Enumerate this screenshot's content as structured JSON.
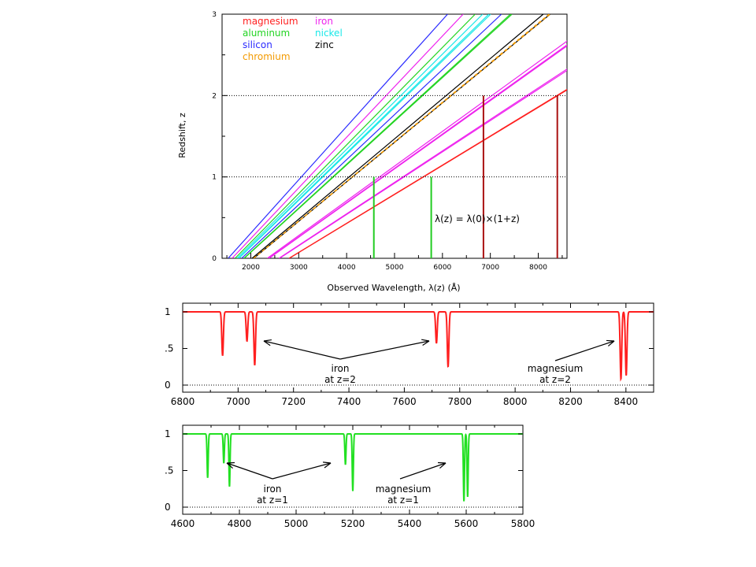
{
  "chart_data": [
    {
      "type": "line",
      "xlabel": "Observed Wavelength, λ(z) (Å)",
      "ylabel": "Redshift, z",
      "xlim": [
        1400,
        8600
      ],
      "ylim": [
        0,
        3
      ],
      "x_ticks": [
        2000,
        3000,
        4000,
        5000,
        6000,
        7000,
        8000
      ],
      "y_ticks": [
        0,
        1,
        2,
        3
      ],
      "ref_lines_y": [
        1,
        2
      ],
      "formula": "λ(z) = λ(0)×(1+z)",
      "grid": false,
      "legend_position": "top-left",
      "legend": [
        {
          "name": "magnesium",
          "color": "#ff1f1f"
        },
        {
          "name": "aluminum",
          "color": "#22d422"
        },
        {
          "name": "silicon",
          "color": "#2b2bff"
        },
        {
          "name": "chromium",
          "color": "#f39a00"
        },
        {
          "name": "iron",
          "color": "#ee22ee"
        },
        {
          "name": "nickel",
          "color": "#18e8e8"
        },
        {
          "name": "zinc",
          "color": "#000000"
        }
      ],
      "series_note": "each line is λ(z) = λ(0)(1+z); values = rest wavelength λ(0) in Å",
      "series": [
        {
          "element": "silicon",
          "color": "#2b2bff",
          "rest": [
            1527,
            1808
          ]
        },
        {
          "element": "aluminum",
          "color": "#22d422",
          "rest": [
            1671,
            1855,
            1863
          ]
        },
        {
          "element": "nickel",
          "color": "#18e8e8",
          "rest": [
            1710,
            1742,
            1752
          ]
        },
        {
          "element": "iron",
          "color": "#ee22ee",
          "rest": [
            1608,
            2344,
            2374,
            2383,
            2586,
            2600
          ]
        },
        {
          "element": "zinc",
          "color": "#000000",
          "rest": [
            2026,
            2062
          ]
        },
        {
          "element": "chromium",
          "color": "#f39a00",
          "rest": [
            2056,
            2062
          ]
        },
        {
          "element": "magnesium",
          "color": "#ff1f1f",
          "rest": [
            2796,
            2803
          ]
        }
      ],
      "markers": [
        {
          "x": 4568,
          "z_top": 1,
          "color": "#22cc22"
        },
        {
          "x": 5766,
          "z_top": 1,
          "color": "#22cc22"
        },
        {
          "x": 6856,
          "z_top": 2,
          "color": "#aa1111"
        },
        {
          "x": 8398,
          "z_top": 2,
          "color": "#aa1111"
        }
      ]
    },
    {
      "type": "line",
      "series_name": "spectrum at z=2",
      "color": "#ff1f1f",
      "xlim": [
        6800,
        8500
      ],
      "ylim": [
        0,
        1
      ],
      "x_ticks": [
        6800,
        7000,
        7200,
        7400,
        7600,
        7800,
        8000,
        8200,
        8400
      ],
      "y_ticks": [
        {
          "v": 0,
          "label": "0"
        },
        {
          "v": 0.5,
          "label": ".5"
        },
        {
          "v": 1,
          "label": "1"
        }
      ],
      "continuum": 1,
      "absorption_lines": [
        {
          "x": 6944,
          "depth": 0.6
        },
        {
          "x": 7032,
          "depth": 0.4
        },
        {
          "x": 7060,
          "depth": 0.73
        },
        {
          "x": 7716,
          "depth": 0.43
        },
        {
          "x": 7758,
          "depth": 0.75
        },
        {
          "x": 8382,
          "depth": 0.92
        },
        {
          "x": 8401,
          "depth": 0.87
        }
      ],
      "annotations": [
        {
          "label": "iron",
          "sub": "at z=2",
          "arrows_to": [
            7020,
            7700
          ]
        },
        {
          "label": "magnesium",
          "sub": "at z=2",
          "arrows_to": [
            8365
          ]
        }
      ]
    },
    {
      "type": "line",
      "series_name": "spectrum at z=1",
      "color": "#22e022",
      "xlim": [
        4600,
        5800
      ],
      "ylim": [
        0,
        1
      ],
      "x_ticks": [
        4600,
        4800,
        5000,
        5200,
        5400,
        5600,
        5800
      ],
      "y_ticks": [
        {
          "v": 0,
          "label": "0"
        },
        {
          "v": 0.5,
          "label": ".5"
        },
        {
          "v": 1,
          "label": "1"
        }
      ],
      "continuum": 1,
      "absorption_lines": [
        {
          "x": 4688,
          "depth": 0.6
        },
        {
          "x": 4745,
          "depth": 0.4
        },
        {
          "x": 4765,
          "depth": 0.72
        },
        {
          "x": 5174,
          "depth": 0.42
        },
        {
          "x": 5200,
          "depth": 0.78
        },
        {
          "x": 5592,
          "depth": 0.92
        },
        {
          "x": 5605,
          "depth": 0.86
        }
      ],
      "annotations": [
        {
          "label": "iron",
          "sub": "at z=1",
          "arrows_to": [
            4760,
            5150
          ]
        },
        {
          "label": "magnesium",
          "sub": "at z=1",
          "arrows_to": [
            5580
          ]
        }
      ]
    }
  ]
}
